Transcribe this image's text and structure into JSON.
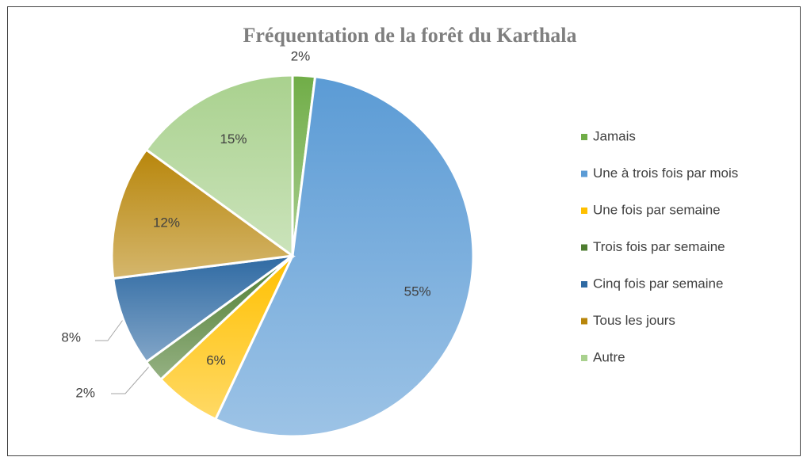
{
  "chart_data": {
    "type": "pie",
    "title": "Fréquentation de la forêt du Karthala",
    "categories": [
      "Jamais",
      "Une à trois fois par mois",
      "Une fois par semaine",
      "Trois fois par semaine",
      "Cinq fois par semaine",
      "Tous les jours",
      "Autre"
    ],
    "values": [
      2,
      55,
      6,
      2,
      8,
      12,
      15
    ],
    "value_labels": [
      "2%",
      "55%",
      "6%",
      "2%",
      "8%",
      "12%",
      "15%"
    ],
    "colors": [
      "#70ad47",
      "#5b9bd5",
      "#ffc000",
      "#4e7d30",
      "#2f6aa3",
      "#b8860b",
      "#a9d18e"
    ],
    "legend": "right"
  }
}
